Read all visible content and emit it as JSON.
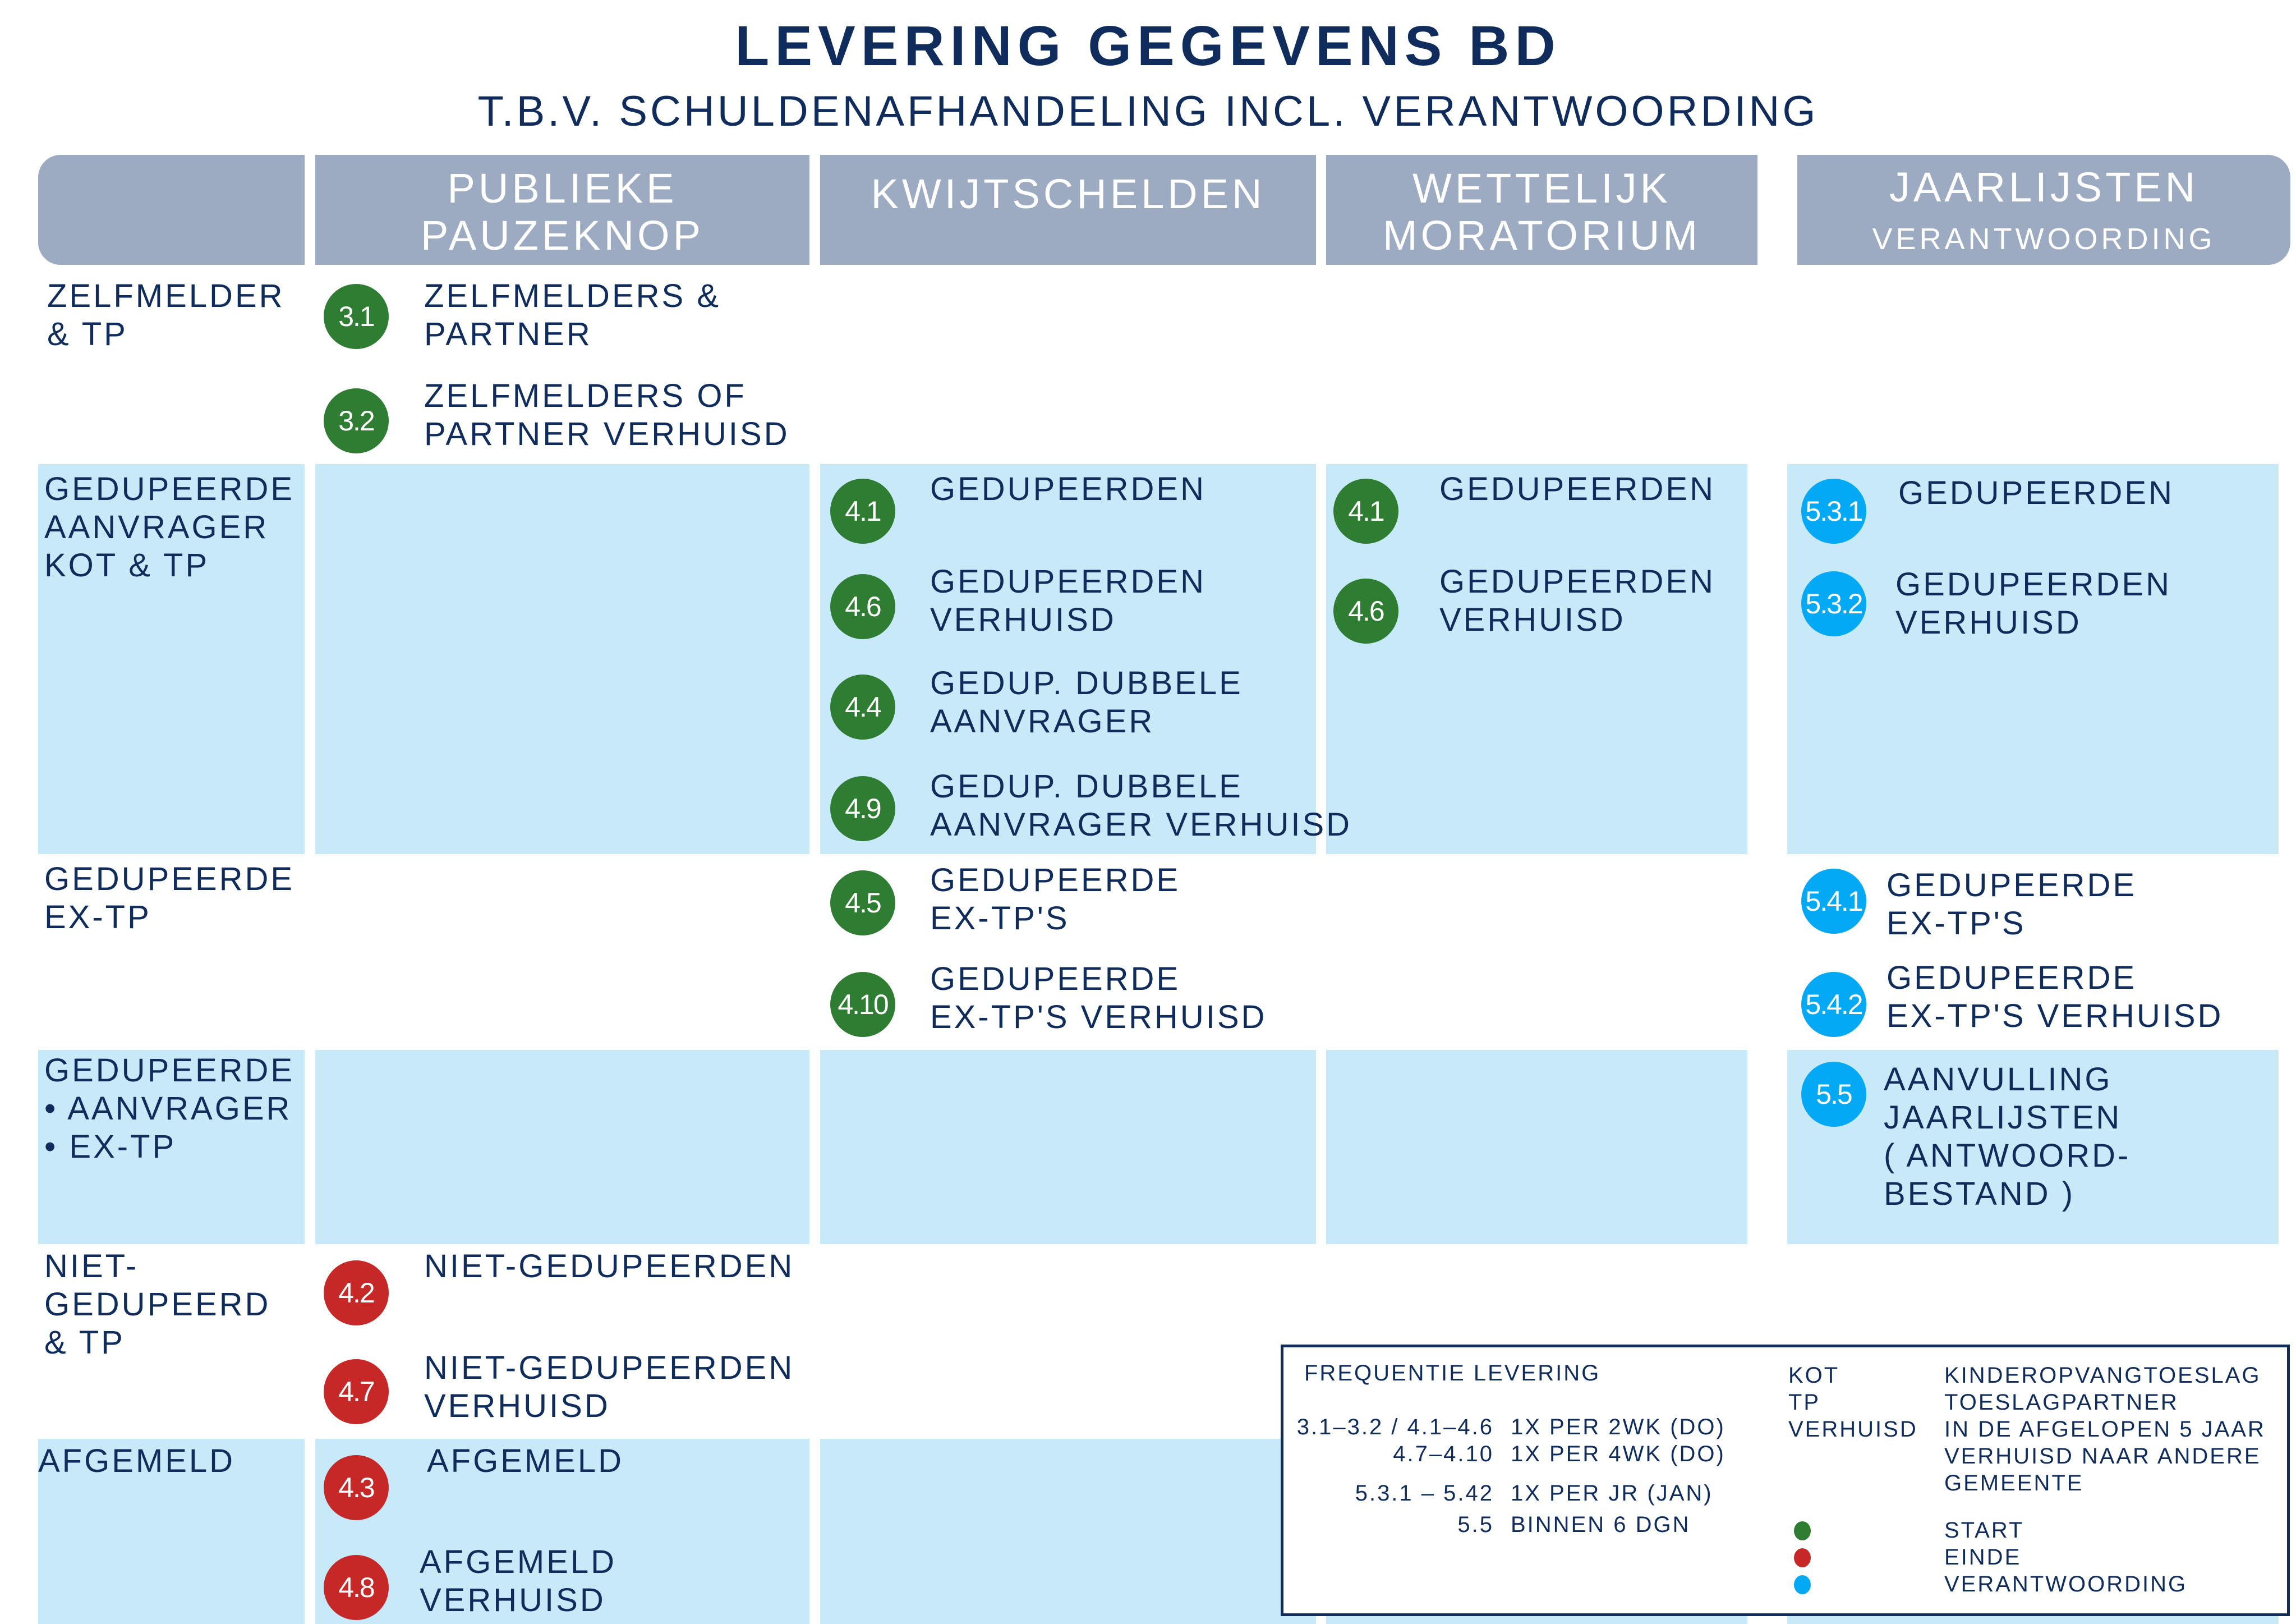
{
  "title": "LEVERING GEGEVENS BD",
  "subtitle": "T.B.V. SCHULDENAFHANDELING INCL. VERANTWOORDING",
  "columns": [
    {
      "title": "PUBLIEKE\nPAUZEKNOP"
    },
    {
      "title": "KWIJTSCHELDEN"
    },
    {
      "title": "WETTELIJK\nMORATORIUM"
    },
    {
      "title": "JAARLIJSTEN",
      "subtitle": "VERANTWOORDING"
    }
  ],
  "rows": [
    {
      "label": "ZELFMELDER\n& TP"
    },
    {
      "label": "GEDUPEERDE\nAANVRAGER\nKOT & TP"
    },
    {
      "label": "GEDUPEERDE\nEX-TP"
    },
    {
      "label": "GEDUPEERDE\n• AANVRAGER\n• EX-TP"
    },
    {
      "label": "NIET-\nGEDUPEERD\n& TP"
    },
    {
      "label": "AFGEMELD"
    }
  ],
  "items": [
    {
      "code": "3.1",
      "text": "ZELFMELDERS &\nPARTNER",
      "type": "start"
    },
    {
      "code": "3.2",
      "text": "ZELFMELDERS OF\nPARTNER VERHUISD",
      "type": "start"
    },
    {
      "code": "4.1",
      "text": "GEDUPEERDEN",
      "type": "start"
    },
    {
      "code": "4.6",
      "text": "GEDUPEERDEN\nVERHUISD",
      "type": "start"
    },
    {
      "code": "4.4",
      "text": "GEDUP. DUBBELE\nAANVRAGER",
      "type": "start"
    },
    {
      "code": "4.9",
      "text": "GEDUP. DUBBELE\nAANVRAGER VERHUISD",
      "type": "start"
    },
    {
      "code": "4.5",
      "text": "GEDUPEERDE\nEX-TP'S",
      "type": "start"
    },
    {
      "code": "4.10",
      "text": "GEDUPEERDE\nEX-TP'S VERHUISD",
      "type": "start"
    },
    {
      "code": "4.1",
      "text": "GEDUPEERDEN",
      "type": "start"
    },
    {
      "code": "4.6",
      "text": "GEDUPEERDEN\nVERHUISD",
      "type": "start"
    },
    {
      "code": "5.3.1",
      "text": "GEDUPEERDEN",
      "type": "verantwoording"
    },
    {
      "code": "5.3.2",
      "text": "GEDUPEERDEN\nVERHUISD",
      "type": "verantwoording"
    },
    {
      "code": "5.4.1",
      "text": "GEDUPEERDE\nEX-TP'S",
      "type": "verantwoording"
    },
    {
      "code": "5.4.2",
      "text": "GEDUPEERDE\nEX-TP'S VERHUISD",
      "type": "verantwoording"
    },
    {
      "code": "5.5",
      "text": "AANVULLING\nJAARLIJSTEN\n( ANTWOORD-\nBESTAND )",
      "type": "verantwoording"
    },
    {
      "code": "4.2",
      "text": "NIET-GEDUPEERDEN",
      "type": "einde"
    },
    {
      "code": "4.7",
      "text": "NIET-GEDUPEERDEN\nVERHUISD",
      "type": "einde"
    },
    {
      "code": "4.3",
      "text": "AFGEMELD",
      "type": "einde"
    },
    {
      "code": "4.8",
      "text": "AFGEMELD\nVERHUISD",
      "type": "einde"
    }
  ],
  "legend": {
    "frequency_title": "FREQUENTIE LEVERING",
    "frequency": [
      {
        "range": "3.1–3.2 / 4.1–4.6",
        "value": "1X PER 2WK (DO)"
      },
      {
        "range": "4.7–4.10",
        "value": "1X PER 4WK (DO)"
      },
      {
        "range": "5.3.1 – 5.42",
        "value": "1X PER JR (JAN)"
      },
      {
        "range": "5.5",
        "value": "BINNEN 6 DGN"
      }
    ],
    "abbrev": [
      {
        "term": "KOT",
        "def": "KINDEROPVANGTOESLAG"
      },
      {
        "term": "TP",
        "def": "TOESLAGPARTNER"
      },
      {
        "term": "VERHUISD",
        "def": "IN DE AFGELOPEN 5 JAAR\nVERHUISD NAAR ANDERE\nGEMEENTE"
      }
    ],
    "colors": [
      {
        "label": "START",
        "color": "#2e7d32"
      },
      {
        "label": "EINDE",
        "color": "#c62828"
      },
      {
        "label": "VERANTWOORDING",
        "color": "#03a9f4"
      }
    ]
  }
}
